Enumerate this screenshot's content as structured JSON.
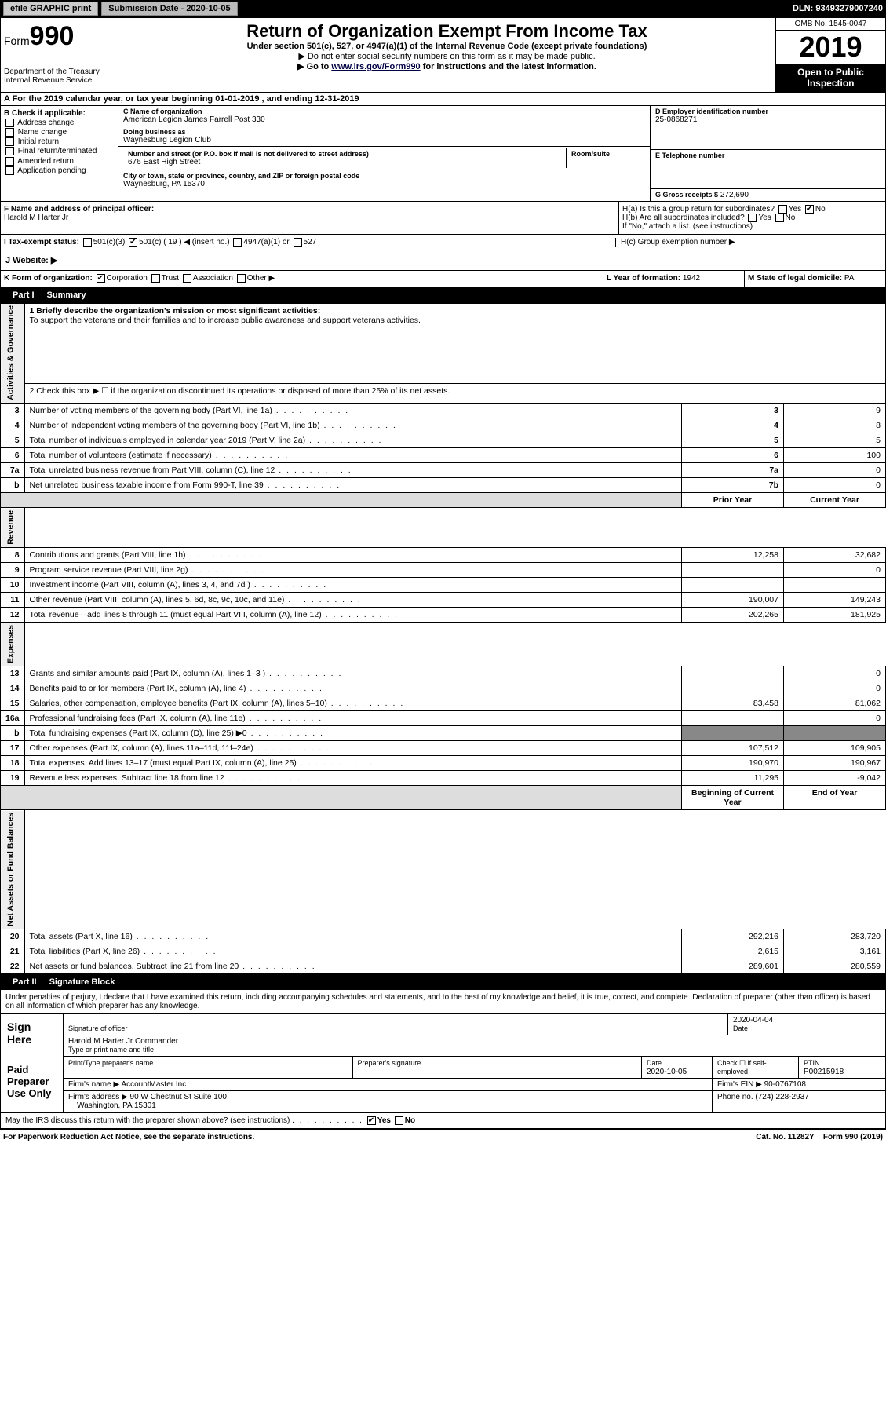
{
  "topbar": {
    "efile": "efile GRAPHIC print",
    "submission": "Submission Date - 2020-10-05",
    "dln": "DLN: 93493279007240"
  },
  "header": {
    "form_prefix": "Form",
    "form_num": "990",
    "dept": "Department of the Treasury\nInternal Revenue Service",
    "title": "Return of Organization Exempt From Income Tax",
    "subtitle": "Under section 501(c), 527, or 4947(a)(1) of the Internal Revenue Code (except private foundations)",
    "note1": "▶ Do not enter social security numbers on this form as it may be made public.",
    "note2_pre": "▶ Go to ",
    "note2_link": "www.irs.gov/Form990",
    "note2_post": " for instructions and the latest information.",
    "omb": "OMB No. 1545-0047",
    "year": "2019",
    "open": "Open to Public Inspection"
  },
  "row_a": "A For the 2019 calendar year, or tax year beginning 01-01-2019   , and ending 12-31-2019",
  "box_b": {
    "title": "B Check if applicable:",
    "opts": [
      "Address change",
      "Name change",
      "Initial return",
      "Final return/terminated",
      "Amended return",
      "Application pending"
    ]
  },
  "box_c": {
    "name_label": "C Name of organization",
    "name": "American Legion James Farrell Post 330",
    "dba_label": "Doing business as",
    "dba": "Waynesburg Legion Club",
    "addr_label": "Number and street (or P.O. box if mail is not delivered to street address)",
    "room_label": "Room/suite",
    "addr": "676 East High Street",
    "city_label": "City or town, state or province, country, and ZIP or foreign postal code",
    "city": "Waynesburg, PA  15370"
  },
  "box_d": {
    "label": "D Employer identification number",
    "value": "25-0868271"
  },
  "box_e": {
    "label": "E Telephone number",
    "value": ""
  },
  "box_g": {
    "label": "G Gross receipts $",
    "value": "272,690"
  },
  "box_f": {
    "label": "F Name and address of principal officer:",
    "value": "Harold M Harter Jr"
  },
  "box_h": {
    "a": "H(a)  Is this a group return for subordinates?",
    "a_yes": "Yes",
    "a_no": "No",
    "b": "H(b)  Are all subordinates included?",
    "b_yes": "Yes",
    "b_no": "No",
    "b_note": "If \"No,\" attach a list. (see instructions)",
    "c": "H(c)  Group exemption number ▶"
  },
  "box_i": {
    "label": "I  Tax-exempt status:",
    "c3": "501(c)(3)",
    "c": "501(c) ( 19 ) ◀ (insert no.)",
    "a1": "4947(a)(1) or",
    "s527": "527"
  },
  "box_j": "J  Website: ▶",
  "box_k": "K Form of organization:",
  "k_opts": {
    "corp": "Corporation",
    "trust": "Trust",
    "assoc": "Association",
    "other": "Other ▶"
  },
  "box_l": {
    "label": "L Year of formation:",
    "value": "1942"
  },
  "box_m": {
    "label": "M State of legal domicile:",
    "value": "PA"
  },
  "part1": {
    "num": "Part I",
    "title": "Summary"
  },
  "summary": {
    "side1": "Activities & Governance",
    "side2": "Revenue",
    "side3": "Expenses",
    "side4": "Net Assets or Fund Balances",
    "l1_label": "1 Briefly describe the organization's mission or most significant activities:",
    "l1_text": "To support the veterans and their families and to increase public awareness and support veterans activities.",
    "l2": "2  Check this box ▶ ☐ if the organization discontinued its operations or disposed of more than 25% of its net assets.",
    "rows_gov": [
      {
        "n": "3",
        "t": "Number of voting members of the governing body (Part VI, line 1a)",
        "box": "3",
        "v": "9"
      },
      {
        "n": "4",
        "t": "Number of independent voting members of the governing body (Part VI, line 1b)",
        "box": "4",
        "v": "8"
      },
      {
        "n": "5",
        "t": "Total number of individuals employed in calendar year 2019 (Part V, line 2a)",
        "box": "5",
        "v": "5"
      },
      {
        "n": "6",
        "t": "Total number of volunteers (estimate if necessary)",
        "box": "6",
        "v": "100"
      },
      {
        "n": "7a",
        "t": "Total unrelated business revenue from Part VIII, column (C), line 12",
        "box": "7a",
        "v": "0"
      },
      {
        "n": "b",
        "t": "Net unrelated business taxable income from Form 990-T, line 39",
        "box": "7b",
        "v": "0"
      }
    ],
    "col_prior": "Prior Year",
    "col_curr": "Current Year",
    "rows_rev": [
      {
        "n": "8",
        "t": "Contributions and grants (Part VIII, line 1h)",
        "p": "12,258",
        "c": "32,682"
      },
      {
        "n": "9",
        "t": "Program service revenue (Part VIII, line 2g)",
        "p": "",
        "c": "0"
      },
      {
        "n": "10",
        "t": "Investment income (Part VIII, column (A), lines 3, 4, and 7d )",
        "p": "",
        "c": ""
      },
      {
        "n": "11",
        "t": "Other revenue (Part VIII, column (A), lines 5, 6d, 8c, 9c, 10c, and 11e)",
        "p": "190,007",
        "c": "149,243"
      },
      {
        "n": "12",
        "t": "Total revenue—add lines 8 through 11 (must equal Part VIII, column (A), line 12)",
        "p": "202,265",
        "c": "181,925"
      }
    ],
    "rows_exp": [
      {
        "n": "13",
        "t": "Grants and similar amounts paid (Part IX, column (A), lines 1–3 )",
        "p": "",
        "c": "0"
      },
      {
        "n": "14",
        "t": "Benefits paid to or for members (Part IX, column (A), line 4)",
        "p": "",
        "c": "0"
      },
      {
        "n": "15",
        "t": "Salaries, other compensation, employee benefits (Part IX, column (A), lines 5–10)",
        "p": "83,458",
        "c": "81,062"
      },
      {
        "n": "16a",
        "t": "Professional fundraising fees (Part IX, column (A), line 11e)",
        "p": "",
        "c": "0"
      },
      {
        "n": "b",
        "t": "Total fundraising expenses (Part IX, column (D), line 25) ▶0",
        "p": "—",
        "c": "—"
      },
      {
        "n": "17",
        "t": "Other expenses (Part IX, column (A), lines 11a–11d, 11f–24e)",
        "p": "107,512",
        "c": "109,905"
      },
      {
        "n": "18",
        "t": "Total expenses. Add lines 13–17 (must equal Part IX, column (A), line 25)",
        "p": "190,970",
        "c": "190,967"
      },
      {
        "n": "19",
        "t": "Revenue less expenses. Subtract line 18 from line 12",
        "p": "11,295",
        "c": "-9,042"
      }
    ],
    "col_begin": "Beginning of Current Year",
    "col_end": "End of Year",
    "rows_net": [
      {
        "n": "20",
        "t": "Total assets (Part X, line 16)",
        "p": "292,216",
        "c": "283,720"
      },
      {
        "n": "21",
        "t": "Total liabilities (Part X, line 26)",
        "p": "2,615",
        "c": "3,161"
      },
      {
        "n": "22",
        "t": "Net assets or fund balances. Subtract line 21 from line 20",
        "p": "289,601",
        "c": "280,559"
      }
    ]
  },
  "part2": {
    "num": "Part II",
    "title": "Signature Block"
  },
  "perjury": "Under penalties of perjury, I declare that I have examined this return, including accompanying schedules and statements, and to the best of my knowledge and belief, it is true, correct, and complete. Declaration of preparer (other than officer) is based on all information of which preparer has any knowledge.",
  "sign": {
    "here": "Sign Here",
    "sig_label": "Signature of officer",
    "date": "2020-04-04",
    "date_label": "Date",
    "name": "Harold M Harter Jr  Commander",
    "name_label": "Type or print name and title"
  },
  "paid": {
    "label": "Paid Preparer Use Only",
    "prep_name_label": "Print/Type preparer's name",
    "prep_sig_label": "Preparer's signature",
    "prep_date_label": "Date",
    "prep_date": "2020-10-05",
    "self_emp": "Check ☐ if self-employed",
    "ptin_label": "PTIN",
    "ptin": "P00215918",
    "firm_name_label": "Firm's name   ▶",
    "firm_name": "AccountMaster Inc",
    "firm_ein_label": "Firm's EIN ▶",
    "firm_ein": "90-0767108",
    "firm_addr_label": "Firm's address ▶",
    "firm_addr": "90 W Chestnut St Suite 100",
    "firm_city": "Washington, PA  15301",
    "phone_label": "Phone no.",
    "phone": "(724) 228-2937"
  },
  "discuss": "May the IRS discuss this return with the preparer shown above? (see instructions)",
  "discuss_yes": "Yes",
  "discuss_no": "No",
  "footer": {
    "left": "For Paperwork Reduction Act Notice, see the separate instructions.",
    "mid": "Cat. No. 11282Y",
    "right": "Form 990 (2019)"
  }
}
